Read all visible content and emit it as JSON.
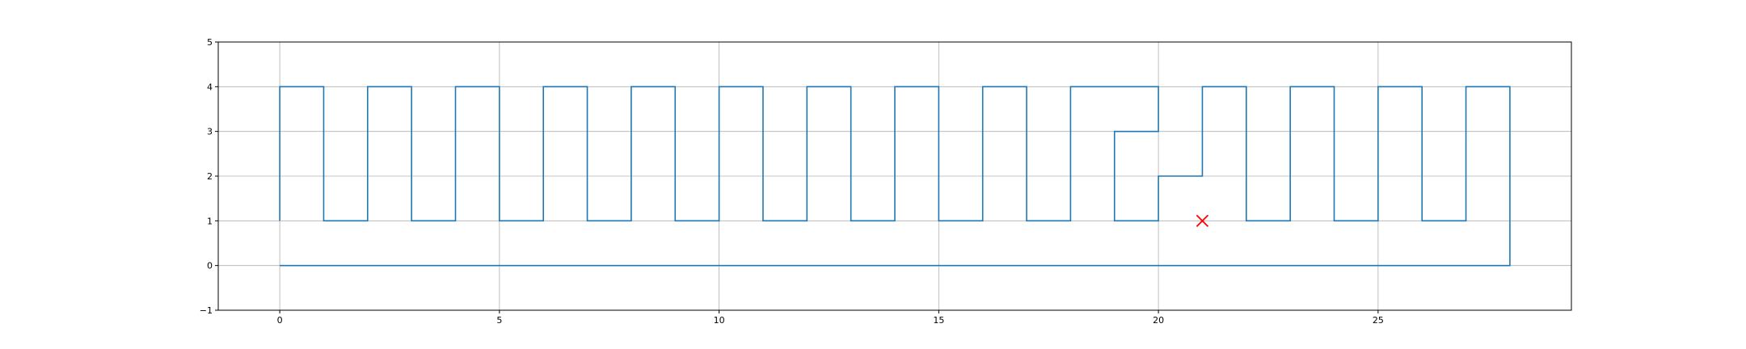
{
  "chart_data": {
    "type": "line",
    "title": "",
    "xlabel": "",
    "ylabel": "",
    "xlim": [
      -1.4,
      29.4
    ],
    "ylim": [
      -1.0,
      5.0
    ],
    "grid": true,
    "x_ticks": [
      0,
      5,
      10,
      15,
      20,
      25
    ],
    "x_tick_labels": [
      "0",
      "5",
      "10",
      "15",
      "20",
      "25"
    ],
    "y_ticks": [
      -1,
      0,
      1,
      2,
      3,
      4,
      5
    ],
    "y_tick_labels": [
      "−1",
      "0",
      "1",
      "2",
      "3",
      "4",
      "5"
    ],
    "series": [
      {
        "color": "#1f77b4",
        "points": [
          [
            0,
            1
          ],
          [
            0,
            4
          ],
          [
            1,
            4
          ],
          [
            1,
            1
          ],
          [
            2,
            1
          ],
          [
            2,
            4
          ],
          [
            3,
            4
          ],
          [
            3,
            1
          ],
          [
            4,
            1
          ],
          [
            4,
            4
          ],
          [
            5,
            4
          ],
          [
            5,
            1
          ],
          [
            6,
            1
          ],
          [
            6,
            4
          ],
          [
            7,
            4
          ],
          [
            7,
            1
          ],
          [
            8,
            1
          ],
          [
            8,
            4
          ],
          [
            9,
            4
          ],
          [
            9,
            1
          ],
          [
            10,
            1
          ],
          [
            10,
            4
          ],
          [
            11,
            4
          ],
          [
            11,
            1
          ],
          [
            12,
            1
          ],
          [
            12,
            4
          ],
          [
            13,
            4
          ],
          [
            13,
            1
          ],
          [
            14,
            1
          ],
          [
            14,
            4
          ],
          [
            15,
            4
          ],
          [
            15,
            1
          ],
          [
            16,
            1
          ],
          [
            16,
            4
          ],
          [
            17,
            4
          ],
          [
            17,
            1
          ],
          [
            18,
            1
          ],
          [
            18,
            4
          ],
          [
            20,
            4
          ],
          [
            20,
            3
          ],
          [
            19,
            3
          ],
          [
            19,
            1
          ],
          [
            20,
            1
          ],
          [
            20,
            2
          ],
          [
            21,
            2
          ],
          [
            21,
            4
          ],
          [
            22,
            4
          ],
          [
            22,
            1
          ],
          [
            23,
            1
          ],
          [
            23,
            4
          ],
          [
            24,
            4
          ],
          [
            24,
            1
          ],
          [
            25,
            1
          ],
          [
            25,
            4
          ],
          [
            26,
            4
          ],
          [
            26,
            1
          ],
          [
            27,
            1
          ],
          [
            27,
            4
          ],
          [
            28,
            4
          ],
          [
            28,
            0
          ],
          [
            0,
            0
          ]
        ]
      }
    ],
    "markers": [
      {
        "x": 21,
        "y": 1,
        "shape": "x",
        "color": "#ff0000"
      }
    ]
  }
}
